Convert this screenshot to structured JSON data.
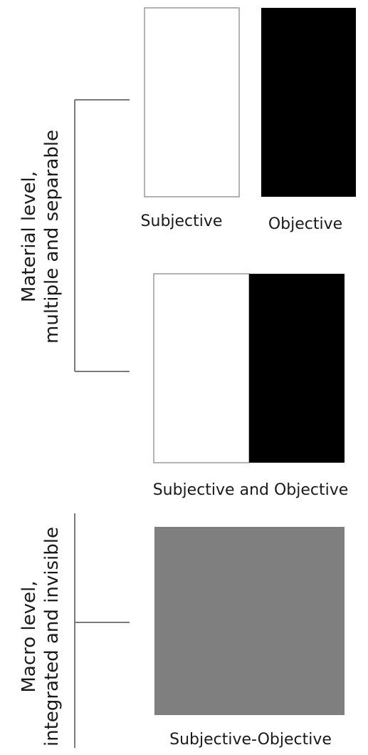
{
  "diagram": {
    "material_level": {
      "label_line1": "Material level,",
      "label_line2": "multiple and separable"
    },
    "macro_level": {
      "label_line1": "Macro level,",
      "label_line2": "integrated and invisible"
    },
    "captions": {
      "subjective": "Subjective",
      "objective": "Objective",
      "subjective_and_objective": "Subjective and Objective",
      "subjective_objective": "Subjective-Objective"
    },
    "colors": {
      "subjective": "#ffffff",
      "objective": "#000000",
      "integrated": "#7f7f7f",
      "bracket": "#7a7a7a"
    }
  }
}
